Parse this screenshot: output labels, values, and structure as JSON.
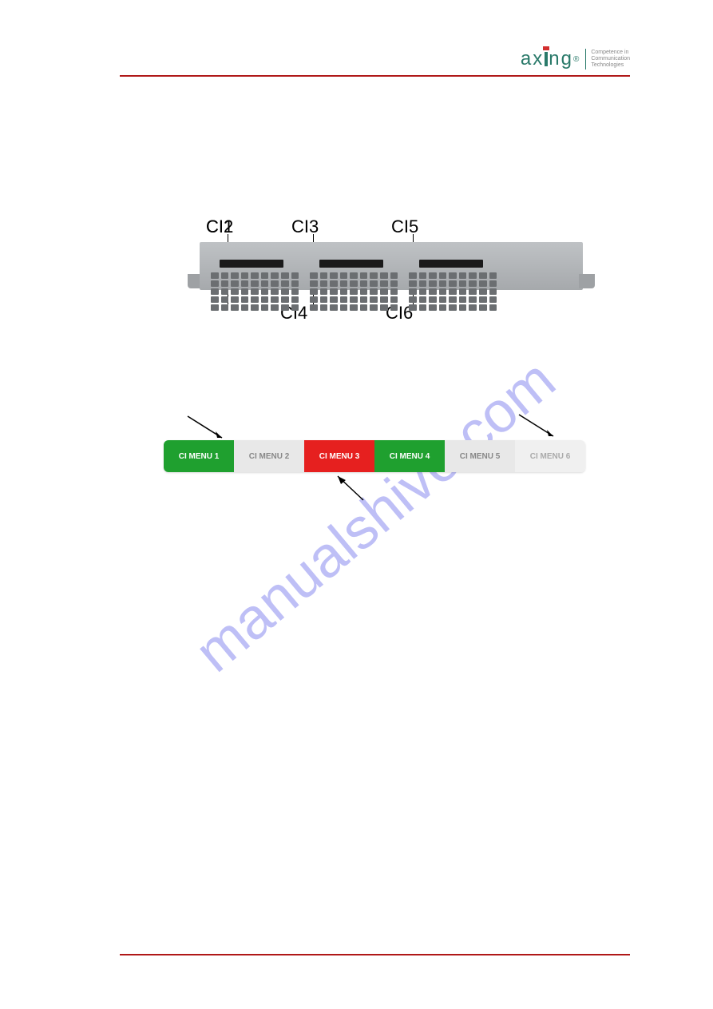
{
  "logo": {
    "name": "axing",
    "tagline1": "Competence in",
    "tagline2": "Communication",
    "tagline3": "Technologies"
  },
  "device": {
    "labels": {
      "ci1": "CI1",
      "ci2": "CI2",
      "ci3": "CI3",
      "ci4": "CI4",
      "ci5": "CI5",
      "ci6": "CI6"
    }
  },
  "menu": {
    "items": [
      {
        "label": "CI MENU 1",
        "color": "#1fa02f",
        "text": "#ffffff"
      },
      {
        "label": "CI MENU 2",
        "color": "#e8e8e8",
        "text": "#999999"
      },
      {
        "label": "CI MENU 3",
        "color": "#e6201f",
        "text": "#ffffff"
      },
      {
        "label": "CI MENU 4",
        "color": "#1fa02f",
        "text": "#ffffff"
      },
      {
        "label": "CI MENU 5",
        "color": "#e8e8e8",
        "text": "#999999"
      },
      {
        "label": "CI MENU 6",
        "color": "#f0f0f0",
        "text": "#bbbbbb"
      }
    ]
  },
  "watermark": "manualshive.com",
  "colors": {
    "rule": "#b01818",
    "brand": "#2a7a6a",
    "red": "#e6201f",
    "green": "#1fa02f",
    "grey": "#e8e8e8"
  }
}
